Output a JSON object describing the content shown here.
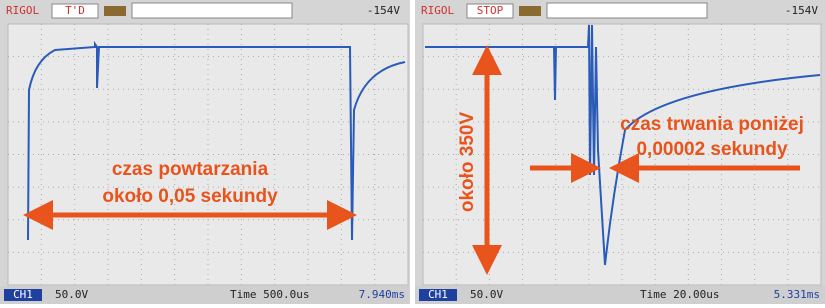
{
  "panels": [
    {
      "brand": "RIGOL",
      "status": "T'D",
      "trigger_level": "-154V",
      "channel": "CH1",
      "volts_div": "50.0V",
      "timebase": "Time 500.0us",
      "trigger_pos": "7.940ms",
      "annotations": [
        "czas powtarzania",
        "około 0,05 sekundy"
      ]
    },
    {
      "brand": "RIGOL",
      "status": "STOP",
      "trigger_level": "-154V",
      "channel": "CH1",
      "volts_div": "50.0V",
      "timebase": "Time 20.00us",
      "trigger_pos": "5.331ms",
      "annotations": [
        "około 350V",
        "czas trwania poniżej",
        "0,00002 sekundy"
      ]
    }
  ]
}
